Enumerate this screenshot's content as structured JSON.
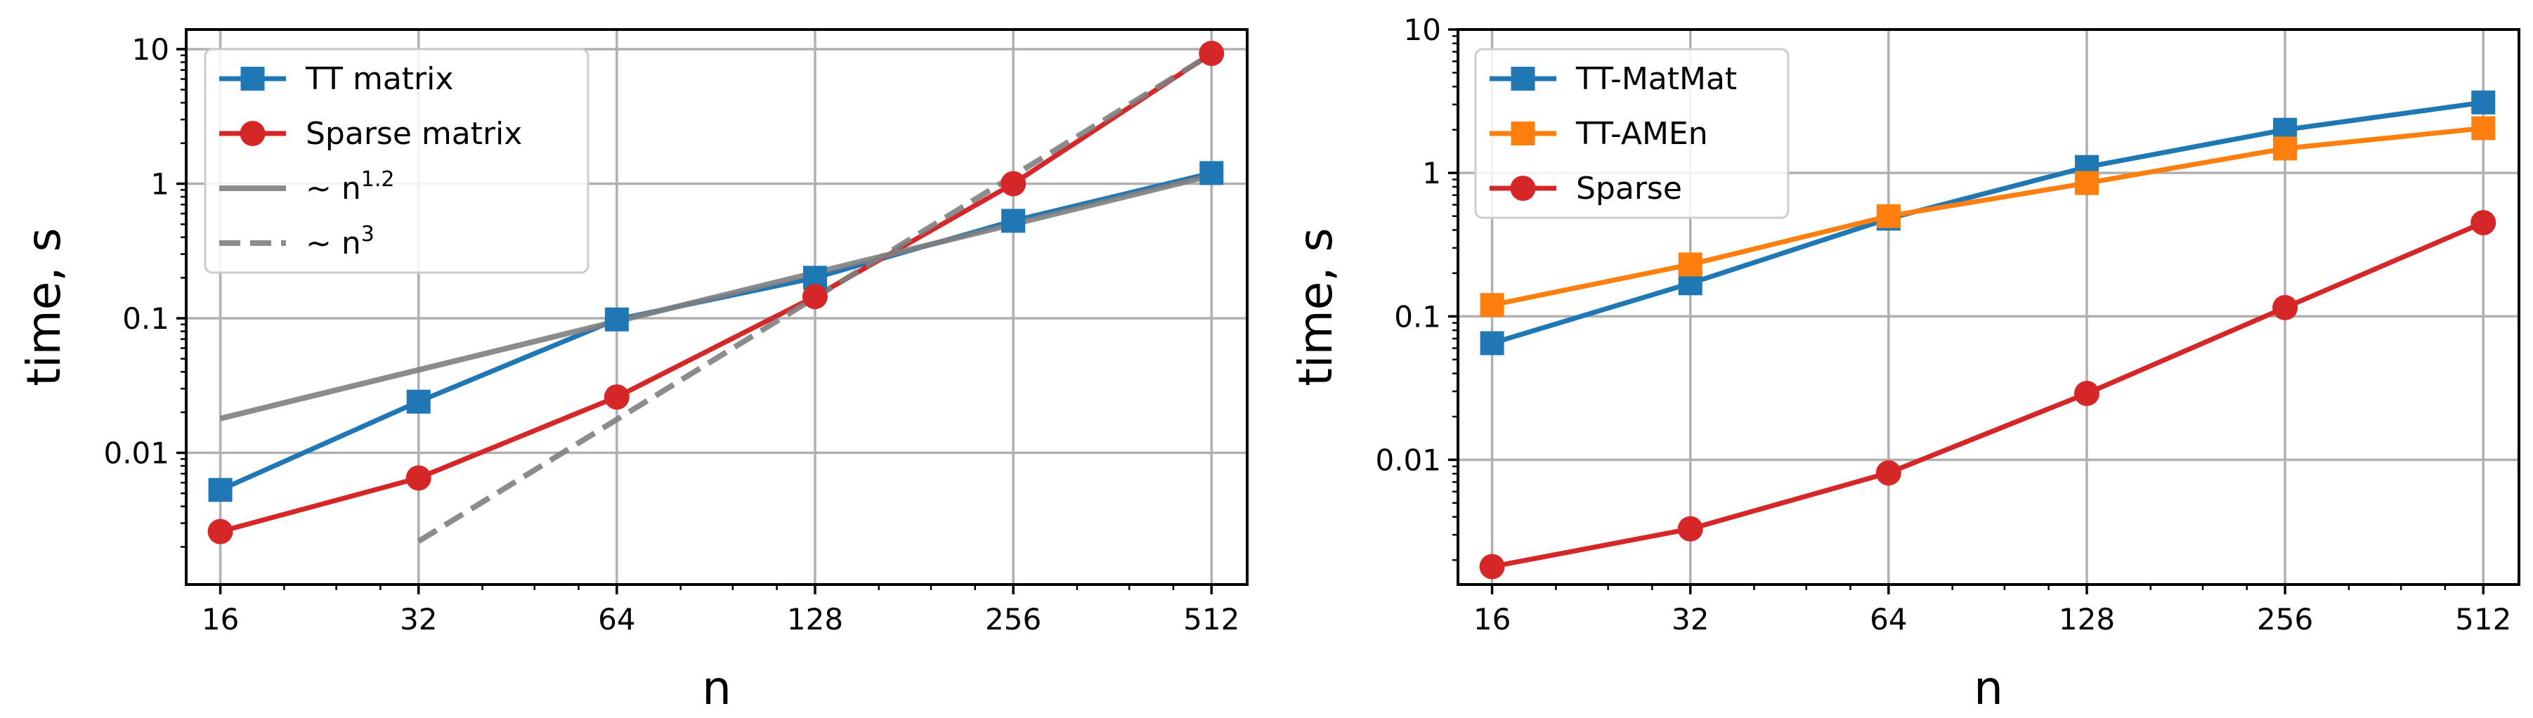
{
  "chart_data": [
    {
      "type": "line",
      "xscale": "log2",
      "yscale": "log10",
      "xlabel": "n",
      "ylabel": "time, s",
      "xlim": [
        14.2,
        580
      ],
      "ylim": [
        0.00105,
        14
      ],
      "xticks": [
        16,
        32,
        64,
        128,
        256,
        512
      ],
      "xtick_labels": [
        "16",
        "32",
        "64",
        "128",
        "256",
        "512"
      ],
      "yticks": [
        0.01,
        0.1,
        1,
        10
      ],
      "ytick_labels": [
        "0.01",
        "0.1",
        "1",
        "10"
      ],
      "grid": true,
      "legend_position": "top-left",
      "series": [
        {
          "name": "TT matrix",
          "color": "#1f77b4",
          "marker": "square",
          "dash": "solid",
          "x": [
            16,
            32,
            64,
            128,
            256,
            512
          ],
          "y": [
            0.0053,
            0.024,
            0.098,
            0.2,
            0.53,
            1.2
          ]
        },
        {
          "name": "Sparse matrix",
          "color": "#d62728",
          "marker": "circle",
          "dash": "solid",
          "x": [
            16,
            32,
            64,
            128,
            256,
            512
          ],
          "y": [
            0.0026,
            0.0065,
            0.026,
            0.145,
            1.0,
            9.3
          ]
        },
        {
          "name": "~ n",
          "superscript": "1.2",
          "color": "#808080",
          "marker": "none",
          "dash": "solid",
          "opacity": 0.9,
          "width": 8,
          "x": [
            16,
            512
          ],
          "y": [
            0.018,
            1.15
          ]
        },
        {
          "name": "~ n",
          "superscript": "3",
          "color": "#808080",
          "marker": "none",
          "dash": "dashed",
          "opacity": 0.9,
          "width": 8,
          "x": [
            32,
            512
          ],
          "y": [
            0.0022,
            9.2
          ]
        }
      ]
    },
    {
      "type": "line",
      "xscale": "log2",
      "yscale": "log10",
      "xlabel": "n",
      "ylabel": "time, s",
      "xlim": [
        14.2,
        580
      ],
      "ylim": [
        0.00135,
        10
      ],
      "xticks": [
        16,
        32,
        64,
        128,
        256,
        512
      ],
      "xtick_labels": [
        "16",
        "32",
        "64",
        "128",
        "256",
        "512"
      ],
      "yticks": [
        0.01,
        0.1,
        1,
        10
      ],
      "ytick_labels": [
        "0.01",
        "0.1",
        "1",
        "10"
      ],
      "grid": true,
      "legend_position": "top-left",
      "series": [
        {
          "name": "TT-MatMat",
          "color": "#1f77b4",
          "marker": "square",
          "dash": "solid",
          "x": [
            16,
            32,
            64,
            128,
            256,
            512
          ],
          "y": [
            0.065,
            0.17,
            0.48,
            1.1,
            2.0,
            3.1
          ]
        },
        {
          "name": "TT-AMEn",
          "color": "#ff7f0e",
          "marker": "square",
          "dash": "solid",
          "x": [
            16,
            32,
            64,
            128,
            256,
            512
          ],
          "y": [
            0.12,
            0.23,
            0.5,
            0.85,
            1.48,
            2.05
          ]
        },
        {
          "name": "Sparse",
          "color": "#d62728",
          "marker": "circle",
          "dash": "solid",
          "x": [
            16,
            32,
            64,
            128,
            256,
            512
          ],
          "y": [
            0.0018,
            0.0033,
            0.0081,
            0.029,
            0.115,
            0.45
          ]
        }
      ]
    }
  ]
}
